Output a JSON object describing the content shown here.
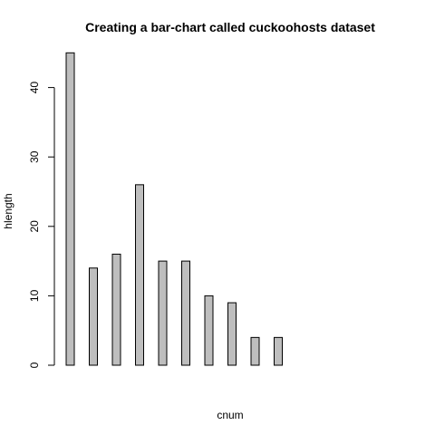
{
  "chart_data": {
    "type": "bar",
    "title": "Creating a bar-chart called cuckoohosts dataset",
    "xlabel": "cnum",
    "ylabel": "hlength",
    "values": [
      45,
      14,
      16,
      26,
      15,
      15,
      10,
      9,
      4,
      4
    ],
    "y_ticks": [
      0,
      10,
      20,
      30,
      40
    ],
    "ylim": [
      0,
      45
    ],
    "bar_color": "#bebebe",
    "grid": false,
    "legend": "none"
  }
}
